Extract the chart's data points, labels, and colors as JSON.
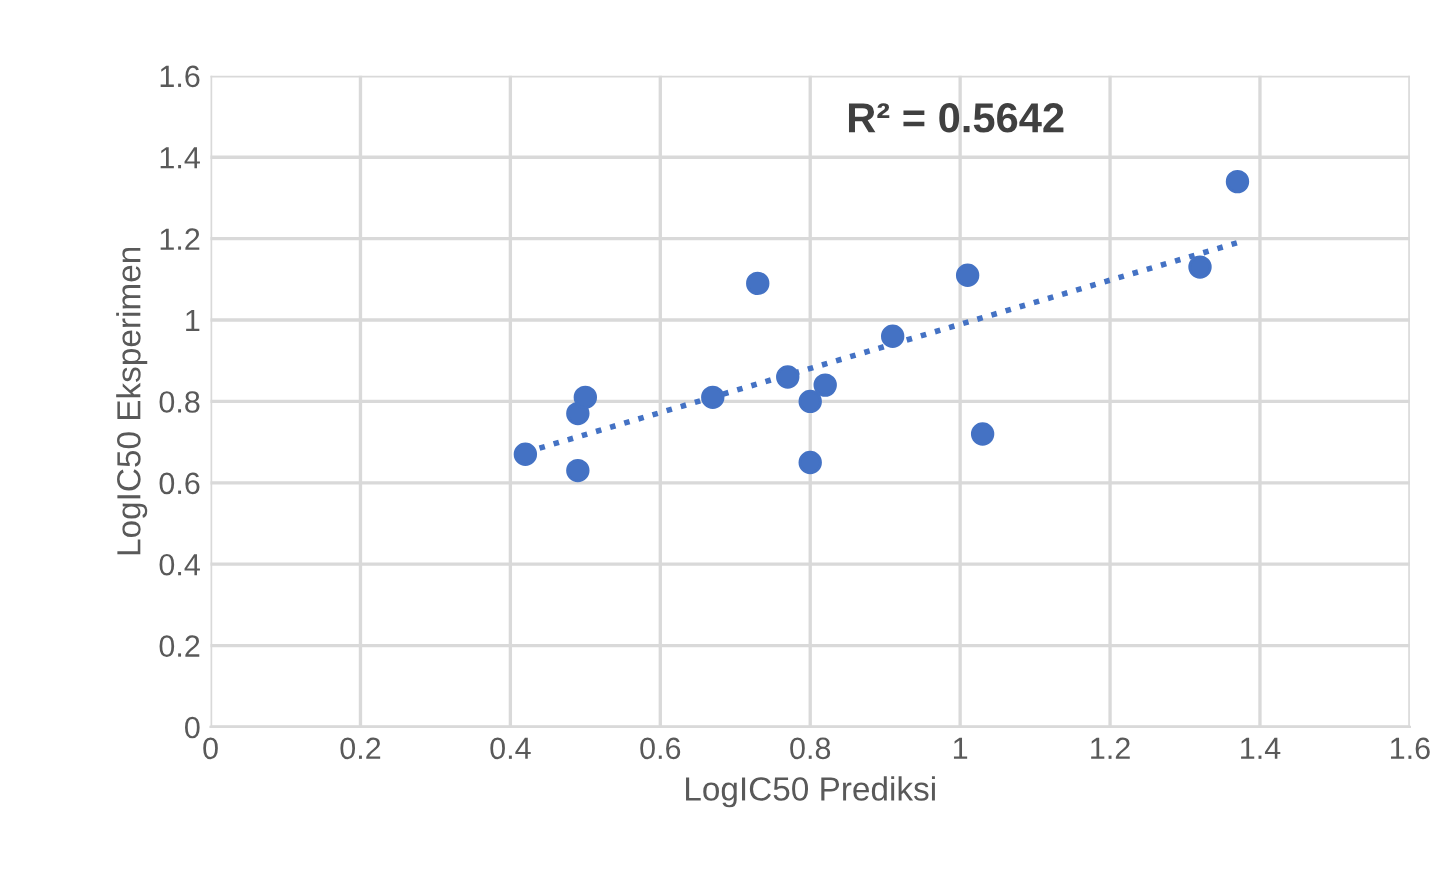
{
  "chart_data": {
    "type": "scatter",
    "xlabel": "LogIC50 Prediksi",
    "ylabel": "LogIC50 Eksperimen",
    "annotations": [
      "R² = 0.5642"
    ],
    "xlim": [
      0,
      1.6
    ],
    "ylim": [
      0,
      1.6
    ],
    "xticks": [
      0,
      0.2,
      0.4,
      0.6,
      0.8,
      1,
      1.2,
      1.4,
      1.6
    ],
    "yticks": [
      0,
      0.2,
      0.4,
      0.6,
      0.8,
      1,
      1.2,
      1.4,
      1.6
    ],
    "grid": true,
    "legend": false,
    "series": [
      {
        "color": "#4472c4",
        "marker": "circle",
        "x": [
          0.42,
          0.49,
          0.5,
          0.49,
          0.67,
          0.73,
          0.77,
          0.8,
          0.8,
          0.82,
          0.91,
          1.01,
          1.03,
          1.32,
          1.37
        ],
        "values": [
          0.67,
          0.77,
          0.81,
          0.63,
          0.81,
          1.09,
          0.86,
          0.8,
          0.65,
          0.84,
          0.96,
          1.11,
          0.72,
          1.13,
          1.34
        ]
      },
      {
        "type": "line",
        "color": "#4472c4",
        "line_style": "dotted",
        "marker": "none",
        "x": [
          0.42,
          1.37
        ],
        "values": [
          0.675,
          1.19
        ]
      }
    ]
  }
}
